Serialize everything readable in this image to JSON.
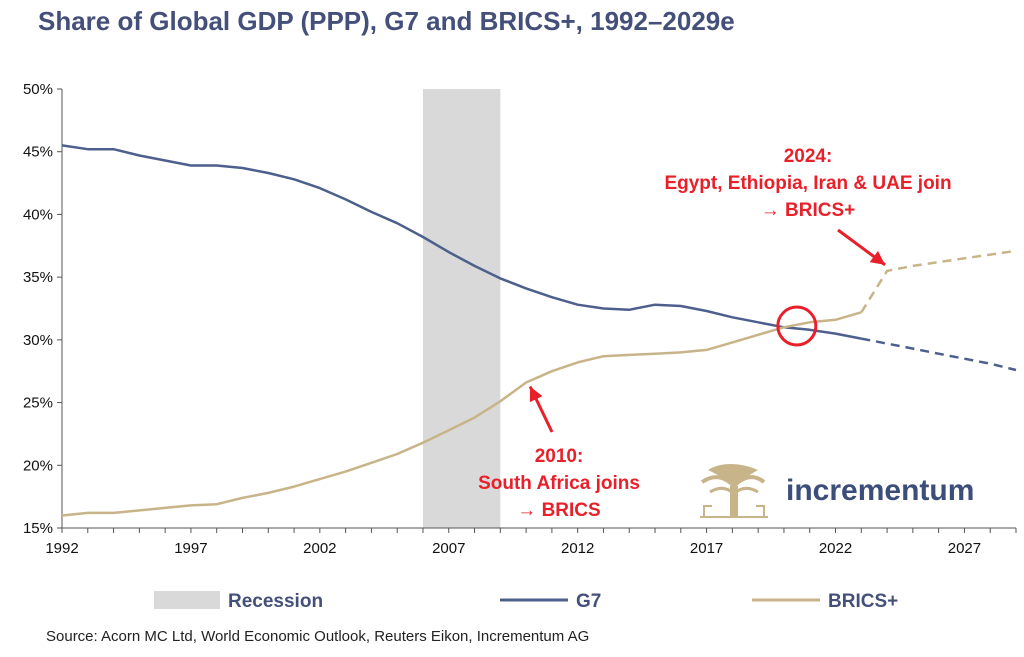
{
  "header": {
    "title": "Share of Global GDP (PPP), G7 and BRICS+, 1992–2029e"
  },
  "footer": {
    "source": "Source: Acorn MC Ltd, World Economic Outlook, Reuters Eikon, Incrementum AG"
  },
  "logo": {
    "text": "incrementum",
    "color": "#3b4e7a"
  },
  "chart_data": {
    "type": "line",
    "title": "Share of Global GDP (PPP), G7 and BRICS+, 1992–2029e",
    "xlim": [
      1992,
      2029
    ],
    "ylim": [
      15,
      50
    ],
    "x_ticks": [
      1992,
      1997,
      2002,
      2007,
      2012,
      2017,
      2022,
      2027
    ],
    "x_tick_labels": [
      "1992",
      "1997",
      "2002",
      "2007",
      "2012",
      "2017",
      "2022",
      "2027"
    ],
    "y_ticks": [
      15,
      20,
      25,
      30,
      35,
      40,
      45,
      50
    ],
    "y_tick_labels": [
      "15%",
      "20%",
      "25%",
      "30%",
      "35%",
      "40%",
      "45%",
      "50%"
    ],
    "grid": false,
    "legend_position": "bottom",
    "recession": {
      "label": "Recession",
      "start": 2006,
      "end": 2009,
      "color": "#d9d9d9"
    },
    "series": [
      {
        "name": "G7",
        "color": "#4d5f8c",
        "x": [
          1992,
          1993,
          1994,
          1995,
          1996,
          1997,
          1998,
          1999,
          2000,
          2001,
          2002,
          2003,
          2004,
          2005,
          2006,
          2007,
          2008,
          2009,
          2010,
          2011,
          2012,
          2013,
          2014,
          2015,
          2016,
          2017,
          2018,
          2019,
          2020,
          2021,
          2022,
          2023,
          2024,
          2025,
          2026,
          2027,
          2028,
          2029
        ],
        "values": [
          45.5,
          45.2,
          45.2,
          44.7,
          44.3,
          43.9,
          43.9,
          43.7,
          43.3,
          42.8,
          42.1,
          41.2,
          40.2,
          39.3,
          38.2,
          37.0,
          35.9,
          34.9,
          34.1,
          33.4,
          32.8,
          32.5,
          32.4,
          32.8,
          32.7,
          32.3,
          31.8,
          31.4,
          31.0,
          30.8,
          30.5,
          30.1,
          29.7,
          29.3,
          28.9,
          28.5,
          28.1,
          27.6
        ],
        "estimate_from": 2023
      },
      {
        "name": "BRICS+",
        "color": "#c8b489",
        "x": [
          1992,
          1993,
          1994,
          1995,
          1996,
          1997,
          1998,
          1999,
          2000,
          2001,
          2002,
          2003,
          2004,
          2005,
          2006,
          2007,
          2008,
          2009,
          2010,
          2011,
          2012,
          2013,
          2014,
          2015,
          2016,
          2017,
          2018,
          2019,
          2020,
          2021,
          2022,
          2023,
          2024,
          2025,
          2026,
          2027,
          2028,
          2029
        ],
        "values": [
          16.0,
          16.2,
          16.2,
          16.4,
          16.6,
          16.8,
          16.9,
          17.4,
          17.8,
          18.3,
          18.9,
          19.5,
          20.2,
          20.9,
          21.8,
          22.8,
          23.8,
          25.1,
          26.6,
          27.5,
          28.2,
          28.7,
          28.8,
          28.9,
          29.0,
          29.2,
          29.8,
          30.4,
          31.0,
          31.4,
          31.6,
          32.2,
          35.5,
          35.9,
          36.2,
          36.5,
          36.8,
          37.1
        ],
        "estimate_from": 2023
      }
    ],
    "annotations": [
      {
        "lines": [
          "2024:",
          "Egypt, Ethiopia, Iran & UAE join",
          "→ BRICS+"
        ],
        "x": 2024,
        "y": 35.5
      },
      {
        "lines": [
          "2010:",
          "South Africa joins",
          "→ BRICS"
        ],
        "x": 2010,
        "y": 26.6
      }
    ],
    "highlight": {
      "x": 2020.5,
      "y": 31.1,
      "shape": "circle"
    }
  }
}
